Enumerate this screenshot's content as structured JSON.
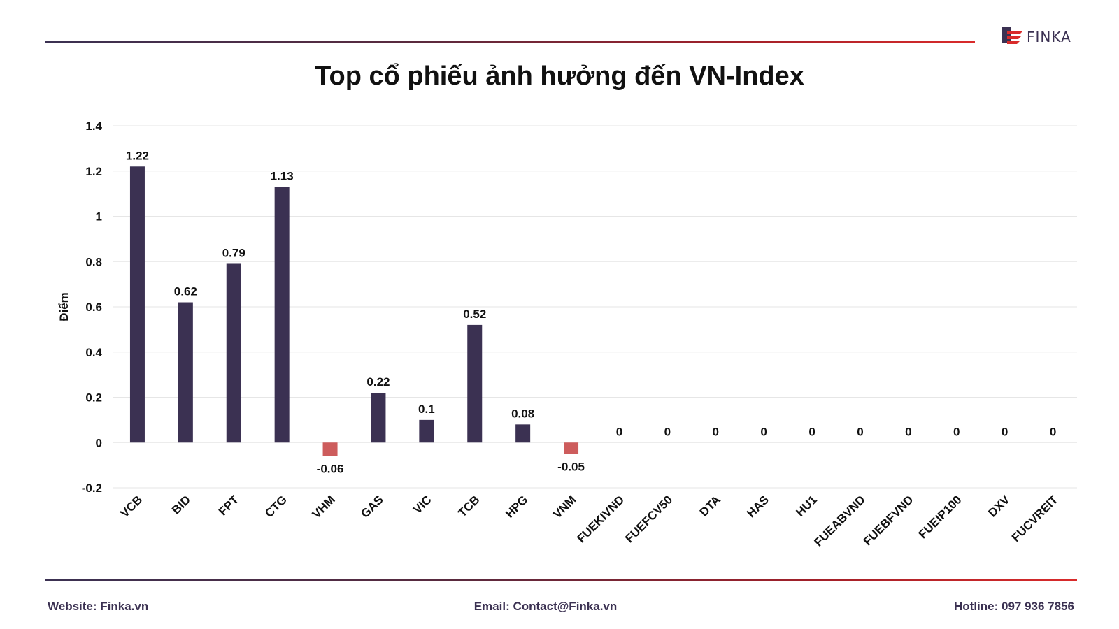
{
  "brand": {
    "logo_text": "FINKA"
  },
  "title": "Top cổ phiếu ảnh hưởng đến VN-Index",
  "footer": {
    "website": "Website: Finka.vn",
    "email": "Email: Contact@Finka.vn",
    "hotline": "Hotline: 097 936 7856"
  },
  "colors": {
    "positive_bar": "#3b3152",
    "negative_bar": "#cd5c5c",
    "gridline": "#e6e6e6",
    "text": "#111111"
  },
  "chart_data": {
    "type": "bar",
    "title": "Top cổ phiếu ảnh hưởng đến VN-Index",
    "xlabel": "",
    "ylabel": "Điểm",
    "ylim": [
      -0.2,
      1.4
    ],
    "yticks": [
      -0.2,
      0,
      0.2,
      0.4,
      0.6,
      0.8,
      1,
      1.2,
      1.4
    ],
    "grid": true,
    "legend": "none",
    "categories": [
      "VCB",
      "BID",
      "FPT",
      "CTG",
      "VHM",
      "GAS",
      "VIC",
      "TCB",
      "HPG",
      "VNM",
      "FUEKIVND",
      "FUEFCV50",
      "DTA",
      "HAS",
      "HU1",
      "FUEABVND",
      "FUEBFVND",
      "FUEIP100",
      "DXV",
      "FUCVREIT"
    ],
    "values": [
      1.22,
      0.62,
      0.79,
      1.13,
      -0.06,
      0.22,
      0.1,
      0.52,
      0.08,
      -0.05,
      0,
      0,
      0,
      0,
      0,
      0,
      0,
      0,
      0,
      0
    ],
    "labels": [
      "1.22",
      "0.62",
      "0.79",
      "1.13",
      "-0.06",
      "0.22",
      "0.1",
      "0.52",
      "0.08",
      "-0.05",
      "0",
      "0",
      "0",
      "0",
      "0",
      "0",
      "0",
      "0",
      "0",
      "0"
    ]
  }
}
